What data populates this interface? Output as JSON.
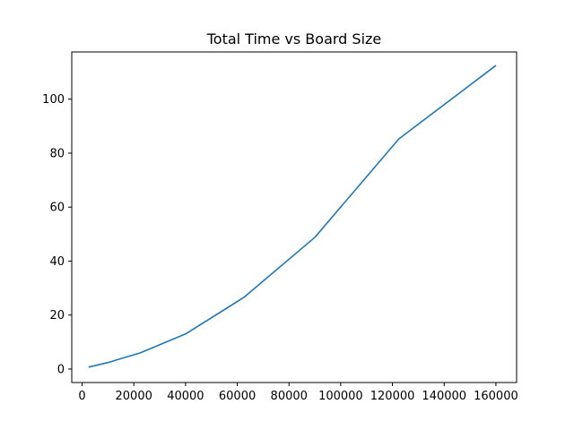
{
  "chart_data": {
    "type": "line",
    "title": "Total Time vs Board Size",
    "xlabel": "",
    "ylabel": "",
    "xlim": [
      -4000,
      168000
    ],
    "ylim": [
      -5,
      117.5
    ],
    "x_ticks": [
      0,
      20000,
      40000,
      60000,
      80000,
      100000,
      120000,
      140000,
      160000
    ],
    "x_tick_labels": [
      "0",
      "20000",
      "40000",
      "60000",
      "80000",
      "100000",
      "120000",
      "140000",
      "160000"
    ],
    "y_ticks": [
      0,
      20,
      40,
      60,
      80,
      100
    ],
    "y_tick_labels": [
      "0",
      "20",
      "40",
      "60",
      "80",
      "100"
    ],
    "grid": false,
    "series": [
      {
        "color": "#1f77b4",
        "x": [
          2500,
          10000,
          22500,
          40000,
          62500,
          90000,
          122500,
          160000
        ],
        "y": [
          0.7,
          2.4,
          6.0,
          13.0,
          26.5,
          48.8,
          85.3,
          112.5
        ]
      }
    ]
  }
}
